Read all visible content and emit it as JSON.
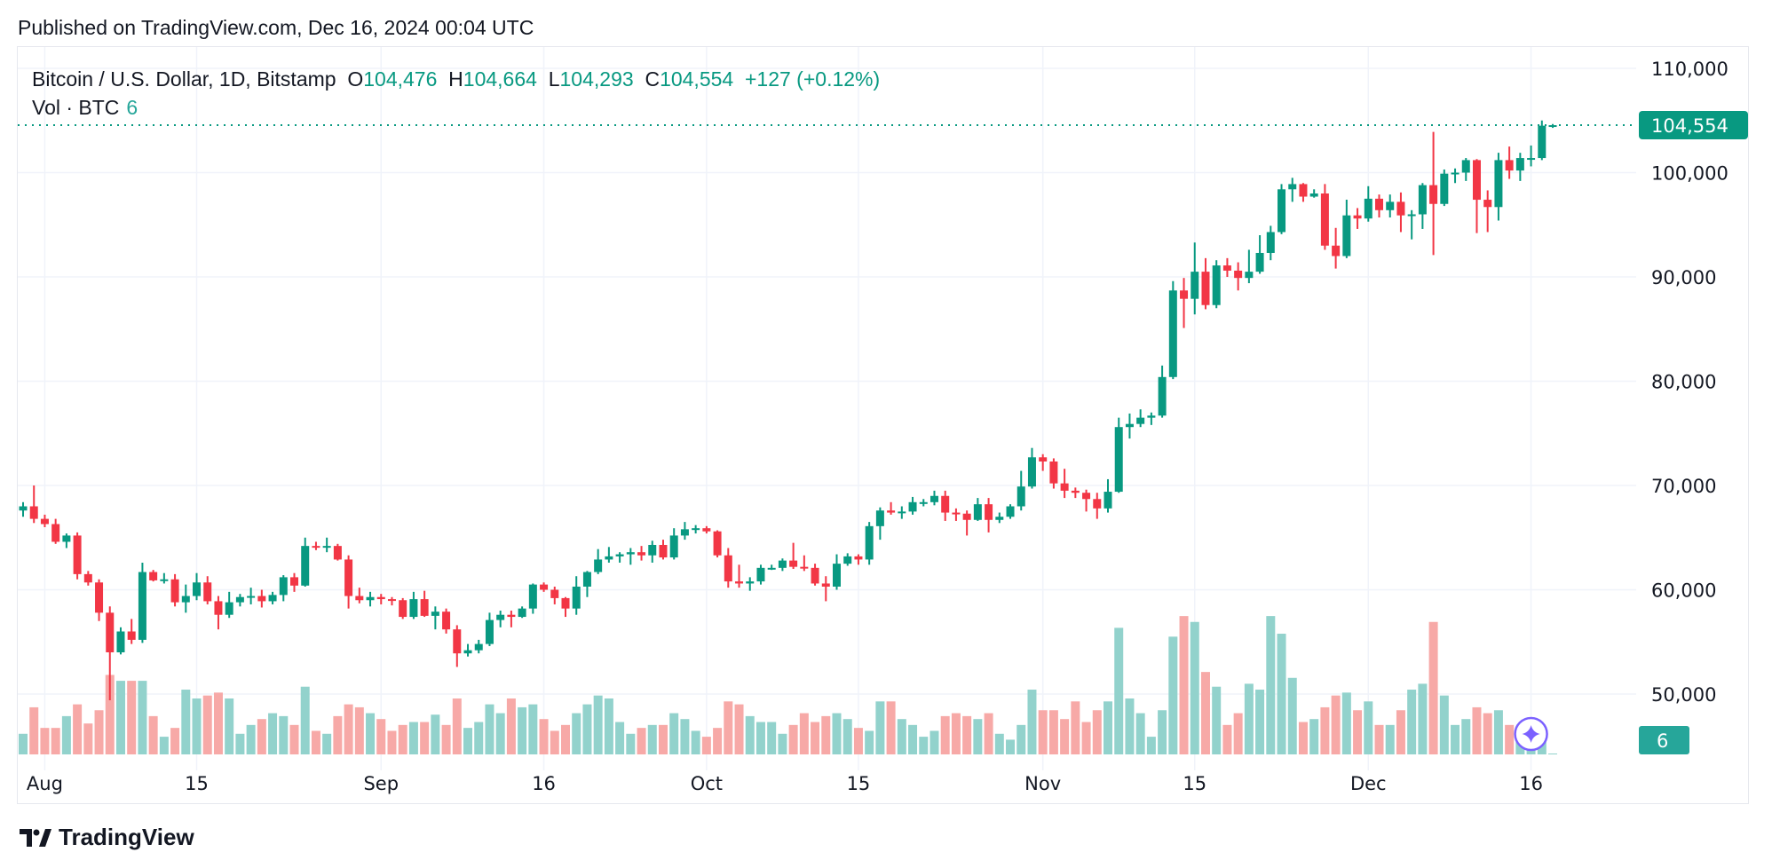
{
  "published": "Published on TradingView.com, Dec 16, 2024 00:04 UTC",
  "legend": {
    "symbol": "Bitcoin / U.S. Dollar, 1D, Bitstamp",
    "o_label": "O",
    "o": "104,476",
    "h_label": "H",
    "h": "104,664",
    "l_label": "L",
    "l": "104,293",
    "c_label": "C",
    "c": "104,554",
    "change": "+127 (+0.12%)"
  },
  "vol_legend": {
    "label": "Vol · BTC",
    "value": "6"
  },
  "footer": {
    "brand": "TradingView"
  },
  "colors": {
    "up": "#089981",
    "down": "#f23645",
    "vol_up": "#92d2cc",
    "vol_down": "#f7a9a7",
    "grid": "#f0f3fa",
    "ai_icon": "#7b61ff"
  },
  "chart_data": {
    "type": "candlestick",
    "title": "Bitcoin / U.S. Dollar, 1D, Bitstamp",
    "price_unit_multiplier": 1000,
    "start_date": "2024-07-30",
    "ylim": [
      45000,
      112000
    ],
    "y_ticks": [
      {
        "v": 110000,
        "label": "110,000"
      },
      {
        "v": 100000,
        "label": "100,000"
      },
      {
        "v": 90000,
        "label": "90,000"
      },
      {
        "v": 80000,
        "label": "80,000"
      },
      {
        "v": 70000,
        "label": "70,000"
      },
      {
        "v": 60000,
        "label": "60,000"
      },
      {
        "v": 50000,
        "label": "50,000"
      }
    ],
    "x_ticks": [
      {
        "day": 2,
        "label": "Aug"
      },
      {
        "day": 16,
        "label": "15"
      },
      {
        "day": 33,
        "label": "Sep"
      },
      {
        "day": 48,
        "label": "16"
      },
      {
        "day": 63,
        "label": "Oct"
      },
      {
        "day": 77,
        "label": "15"
      },
      {
        "day": 94,
        "label": "Nov"
      },
      {
        "day": 108,
        "label": "15"
      },
      {
        "day": 124,
        "label": "Dec"
      },
      {
        "day": 139,
        "label": "16"
      }
    ],
    "last_price": {
      "value": 104554,
      "label": "104,554"
    },
    "last_volume": {
      "value": 6,
      "label": "6"
    },
    "volume_max": 6000,
    "ohlc": [
      [
        67.6,
        68.4,
        67.0,
        68.0
      ],
      [
        68.0,
        70.0,
        66.4,
        66.8
      ],
      [
        66.8,
        67.2,
        66.0,
        66.3
      ],
      [
        66.3,
        66.8,
        64.4,
        64.6
      ],
      [
        64.6,
        65.4,
        64.0,
        65.2
      ],
      [
        65.2,
        65.5,
        61.0,
        61.5
      ],
      [
        61.5,
        61.8,
        60.4,
        60.7
      ],
      [
        60.7,
        61.0,
        57.0,
        57.8
      ],
      [
        57.8,
        58.4,
        49.4,
        54.0
      ],
      [
        54.0,
        56.4,
        53.8,
        56.0
      ],
      [
        56.0,
        57.2,
        54.8,
        55.2
      ],
      [
        55.2,
        62.6,
        54.9,
        61.7
      ],
      [
        61.7,
        61.9,
        60.8,
        60.9
      ],
      [
        60.9,
        61.6,
        60.6,
        61.0
      ],
      [
        61.0,
        61.5,
        58.4,
        58.8
      ],
      [
        58.8,
        60.5,
        57.8,
        59.4
      ],
      [
        59.4,
        61.6,
        59.0,
        60.7
      ],
      [
        60.7,
        61.3,
        58.6,
        58.9
      ],
      [
        58.9,
        59.4,
        56.2,
        57.6
      ],
      [
        57.6,
        59.8,
        57.3,
        58.8
      ],
      [
        58.8,
        59.6,
        58.4,
        59.3
      ],
      [
        59.3,
        60.2,
        58.6,
        59.4
      ],
      [
        59.4,
        60.0,
        58.3,
        58.9
      ],
      [
        58.9,
        59.8,
        58.6,
        59.5
      ],
      [
        59.5,
        61.4,
        58.9,
        61.2
      ],
      [
        61.2,
        61.6,
        59.8,
        60.4
      ],
      [
        60.4,
        65.0,
        60.3,
        64.2
      ],
      [
        64.2,
        64.6,
        63.8,
        64.1
      ],
      [
        64.1,
        65.0,
        63.6,
        64.2
      ],
      [
        64.2,
        64.4,
        62.8,
        62.9
      ],
      [
        62.9,
        63.3,
        58.2,
        59.4
      ],
      [
        59.4,
        60.2,
        58.7,
        59.0
      ],
      [
        59.0,
        59.8,
        58.4,
        59.3
      ],
      [
        59.3,
        59.6,
        58.6,
        59.1
      ],
      [
        59.1,
        59.3,
        58.5,
        59.0
      ],
      [
        59.0,
        59.2,
        57.2,
        57.4
      ],
      [
        57.4,
        59.8,
        57.2,
        59.1
      ],
      [
        59.1,
        59.9,
        57.4,
        57.5
      ],
      [
        57.5,
        58.4,
        56.2,
        57.9
      ],
      [
        57.9,
        58.2,
        55.8,
        56.2
      ],
      [
        56.2,
        56.6,
        52.6,
        53.9
      ],
      [
        53.9,
        54.8,
        53.6,
        54.2
      ],
      [
        54.2,
        55.2,
        53.9,
        54.8
      ],
      [
        54.8,
        57.8,
        54.6,
        57.1
      ],
      [
        57.1,
        58.0,
        56.4,
        57.6
      ],
      [
        57.6,
        58.0,
        56.4,
        57.4
      ],
      [
        57.4,
        58.4,
        57.3,
        58.2
      ],
      [
        58.2,
        60.6,
        57.7,
        60.5
      ],
      [
        60.5,
        60.7,
        59.8,
        60.0
      ],
      [
        60.0,
        60.3,
        58.6,
        59.2
      ],
      [
        59.2,
        59.3,
        57.4,
        58.2
      ],
      [
        58.2,
        61.3,
        57.6,
        60.3
      ],
      [
        60.3,
        61.8,
        59.3,
        61.7
      ],
      [
        61.7,
        63.9,
        61.5,
        62.9
      ],
      [
        62.9,
        64.1,
        62.6,
        63.2
      ],
      [
        63.2,
        63.6,
        62.6,
        63.4
      ],
      [
        63.4,
        64.0,
        62.4,
        63.6
      ],
      [
        63.6,
        64.2,
        62.8,
        63.3
      ],
      [
        63.3,
        64.7,
        62.6,
        64.3
      ],
      [
        64.3,
        64.8,
        62.9,
        63.1
      ],
      [
        63.1,
        65.9,
        62.9,
        65.2
      ],
      [
        65.2,
        66.5,
        64.8,
        65.8
      ],
      [
        65.8,
        66.2,
        65.4,
        65.9
      ],
      [
        65.9,
        66.1,
        65.4,
        65.6
      ],
      [
        65.6,
        65.7,
        63.1,
        63.3
      ],
      [
        63.3,
        64.0,
        60.2,
        60.8
      ],
      [
        60.8,
        62.4,
        60.2,
        60.6
      ],
      [
        60.6,
        61.2,
        59.9,
        60.8
      ],
      [
        60.8,
        62.4,
        60.5,
        62.1
      ],
      [
        62.1,
        62.4,
        61.9,
        62.1
      ],
      [
        62.1,
        63.0,
        61.8,
        62.8
      ],
      [
        62.8,
        64.5,
        62.0,
        62.2
      ],
      [
        62.2,
        63.3,
        61.8,
        62.1
      ],
      [
        62.1,
        62.5,
        60.4,
        60.6
      ],
      [
        60.6,
        61.3,
        58.9,
        60.3
      ],
      [
        60.3,
        63.4,
        60.0,
        62.5
      ],
      [
        62.5,
        63.5,
        62.3,
        63.2
      ],
      [
        63.2,
        63.4,
        62.4,
        62.9
      ],
      [
        62.9,
        66.5,
        62.4,
        66.1
      ],
      [
        66.1,
        67.9,
        64.8,
        67.6
      ],
      [
        67.6,
        68.4,
        67.2,
        67.4
      ],
      [
        67.4,
        68.0,
        66.8,
        67.5
      ],
      [
        67.5,
        68.9,
        67.2,
        68.4
      ],
      [
        68.4,
        68.7,
        68.0,
        68.4
      ],
      [
        68.4,
        69.5,
        68.1,
        69.0
      ],
      [
        69.0,
        69.5,
        66.6,
        67.4
      ],
      [
        67.4,
        67.8,
        66.6,
        67.3
      ],
      [
        67.3,
        67.6,
        65.2,
        66.7
      ],
      [
        66.7,
        68.8,
        66.6,
        68.2
      ],
      [
        68.2,
        68.8,
        65.5,
        66.7
      ],
      [
        66.7,
        67.4,
        66.4,
        67.0
      ],
      [
        67.0,
        68.2,
        66.8,
        68.0
      ],
      [
        68.0,
        71.4,
        67.6,
        69.9
      ],
      [
        69.9,
        73.6,
        69.7,
        72.7
      ],
      [
        72.7,
        73.0,
        71.4,
        72.3
      ],
      [
        72.3,
        72.6,
        69.7,
        70.2
      ],
      [
        70.2,
        71.6,
        68.8,
        69.5
      ],
      [
        69.5,
        69.8,
        68.8,
        69.3
      ],
      [
        69.3,
        69.6,
        67.5,
        68.7
      ],
      [
        68.7,
        69.3,
        66.8,
        67.8
      ],
      [
        67.8,
        70.6,
        67.4,
        69.4
      ],
      [
        69.4,
        76.5,
        69.3,
        75.6
      ],
      [
        75.6,
        76.9,
        74.5,
        75.9
      ],
      [
        75.9,
        77.3,
        75.6,
        76.5
      ],
      [
        76.5,
        77.0,
        75.8,
        76.7
      ],
      [
        76.7,
        81.5,
        76.5,
        80.4
      ],
      [
        80.4,
        89.6,
        80.2,
        88.7
      ],
      [
        88.7,
        89.9,
        85.1,
        87.9
      ],
      [
        87.9,
        93.3,
        86.4,
        90.5
      ],
      [
        90.5,
        91.8,
        86.9,
        87.3
      ],
      [
        87.3,
        91.6,
        87.0,
        91.1
      ],
      [
        91.1,
        91.8,
        90.0,
        90.6
      ],
      [
        90.6,
        91.4,
        88.7,
        89.9
      ],
      [
        89.9,
        92.6,
        89.4,
        90.5
      ],
      [
        90.5,
        94.0,
        90.3,
        92.3
      ],
      [
        92.3,
        94.9,
        91.6,
        94.3
      ],
      [
        94.3,
        98.9,
        94.1,
        98.4
      ],
      [
        98.4,
        99.5,
        97.2,
        98.9
      ],
      [
        98.9,
        99.0,
        97.2,
        97.7
      ],
      [
        97.7,
        98.4,
        97.6,
        98.0
      ],
      [
        98.0,
        98.9,
        92.6,
        93.0
      ],
      [
        93.0,
        94.7,
        90.8,
        92.0
      ],
      [
        92.0,
        97.4,
        91.8,
        95.9
      ],
      [
        95.9,
        96.6,
        94.6,
        95.6
      ],
      [
        95.6,
        98.7,
        95.3,
        97.5
      ],
      [
        97.5,
        97.9,
        95.7,
        96.4
      ],
      [
        96.4,
        97.9,
        95.7,
        97.2
      ],
      [
        97.2,
        98.1,
        94.3,
        95.9
      ],
      [
        95.9,
        96.4,
        93.6,
        96.0
      ],
      [
        96.0,
        99.0,
        94.6,
        98.8
      ],
      [
        98.8,
        103.9,
        92.1,
        97.0
      ],
      [
        97.0,
        100.3,
        96.8,
        99.9
      ],
      [
        99.9,
        100.4,
        99.0,
        100.0
      ],
      [
        100.0,
        101.4,
        99.2,
        101.2
      ],
      [
        101.2,
        101.3,
        94.2,
        97.4
      ],
      [
        97.4,
        98.3,
        94.3,
        96.7
      ],
      [
        96.7,
        101.9,
        95.4,
        101.2
      ],
      [
        101.2,
        102.5,
        99.4,
        100.2
      ],
      [
        100.2,
        101.9,
        99.2,
        101.4
      ],
      [
        101.4,
        102.6,
        100.6,
        101.4
      ],
      [
        101.4,
        105.0,
        101.2,
        104.5
      ],
      [
        104.48,
        104.66,
        104.29,
        104.55
      ]
    ],
    "volume": [
      700,
      1600,
      900,
      900,
      1300,
      1700,
      1050,
      1500,
      2700,
      2500,
      2500,
      2500,
      1300,
      600,
      900,
      2200,
      1900,
      2000,
      2100,
      1900,
      700,
      1000,
      1200,
      1400,
      1300,
      1000,
      2300,
      800,
      700,
      1300,
      1700,
      1600,
      1400,
      1200,
      800,
      1000,
      1100,
      1100,
      1350,
      1000,
      1900,
      900,
      1100,
      1700,
      1400,
      1900,
      1600,
      1700,
      1200,
      800,
      1000,
      1400,
      1700,
      2000,
      1900,
      1100,
      700,
      900,
      1000,
      1000,
      1400,
      1200,
      800,
      600,
      900,
      1800,
      1700,
      1300,
      1100,
      1100,
      700,
      1000,
      1400,
      1100,
      1300,
      1400,
      1200,
      900,
      800,
      1800,
      1800,
      1200,
      1000,
      600,
      800,
      1300,
      1400,
      1300,
      1200,
      1400,
      700,
      500,
      1000,
      2200,
      1500,
      1500,
      1200,
      1800,
      1100,
      1500,
      1800,
      4300,
      1900,
      1400,
      600,
      1500,
      4000,
      4700,
      4500,
      2800,
      2300,
      1000,
      1400,
      2400,
      2200,
      4700,
      4100,
      2600,
      1100,
      1200,
      1600,
      2000,
      2100,
      1500,
      1800,
      1000,
      1000,
      1500,
      2200,
      2400,
      4500,
      2000,
      1000,
      1200,
      1600,
      1400,
      1500,
      1000,
      900,
      600,
      450,
      6
    ]
  }
}
